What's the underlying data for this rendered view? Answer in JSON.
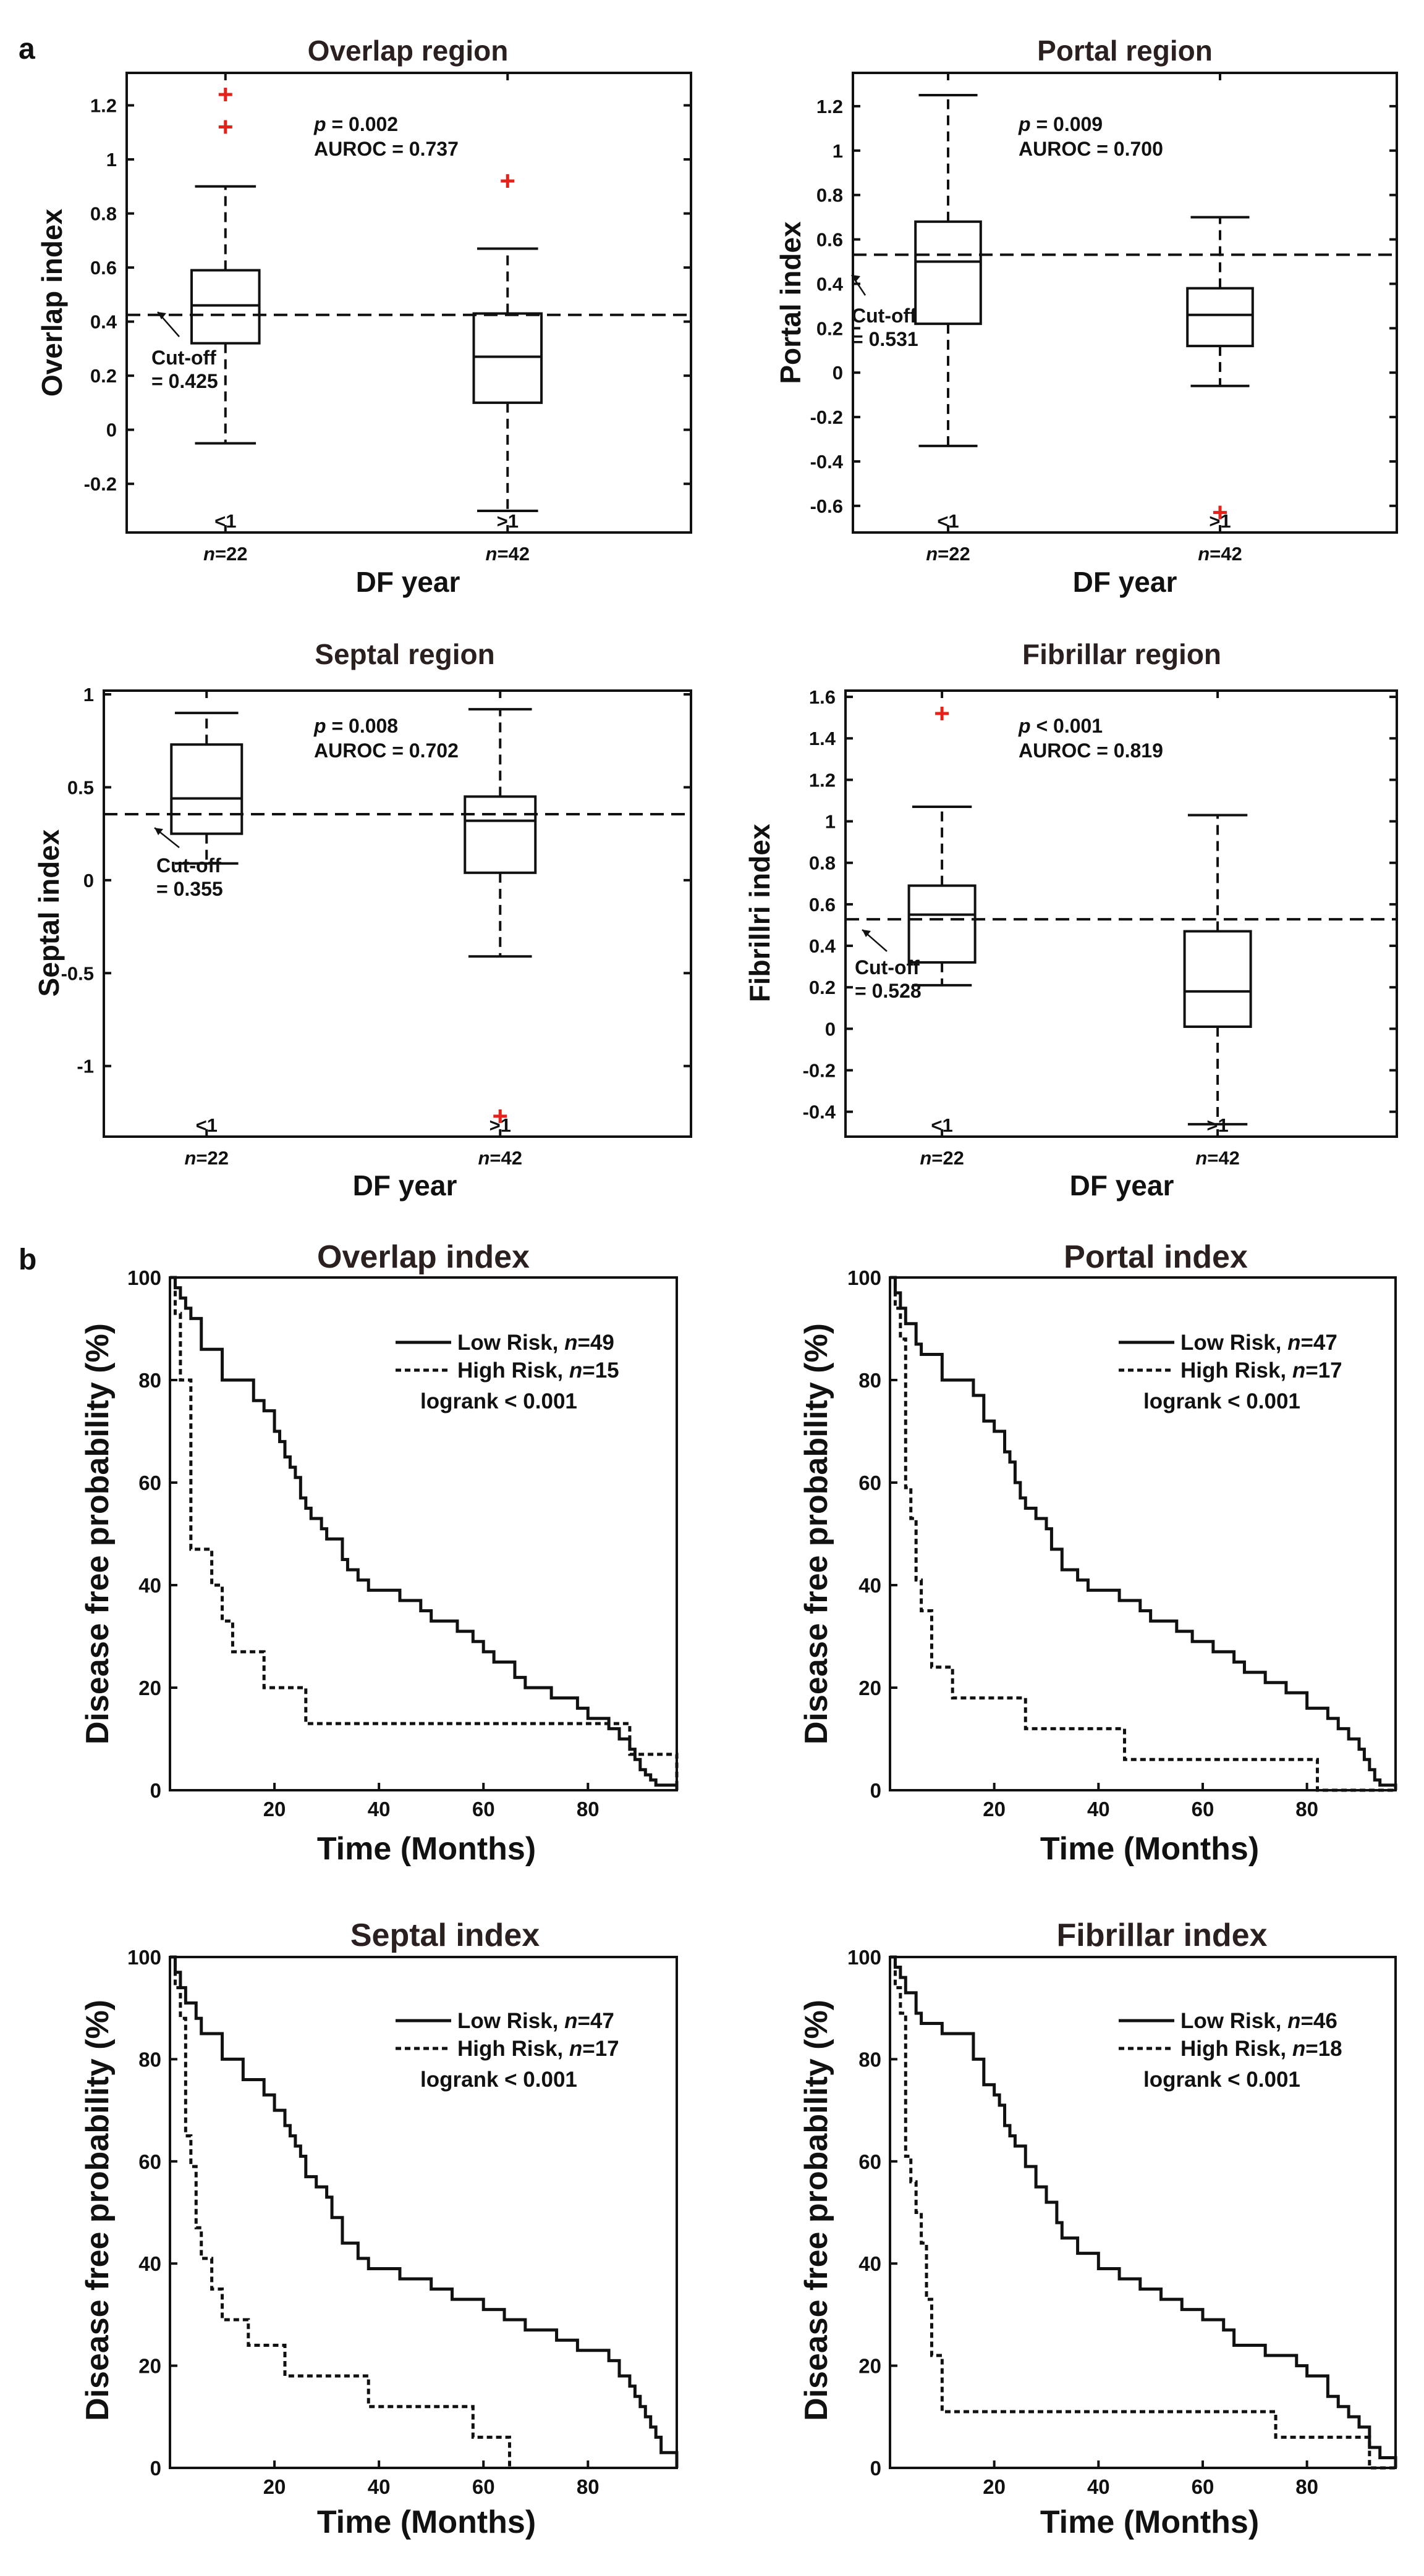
{
  "panel_labels": {
    "a": "a",
    "b": "b"
  },
  "legend_labels": {
    "low_prefix": "Low Risk, ",
    "high_prefix": "High Risk, ",
    "n_label": "n",
    "eq": "="
  },
  "chart_data": [
    {
      "type": "box",
      "title": "Overlap region",
      "ylabel": "Overlap index",
      "xlabel": "DF year",
      "ylim": [
        -0.38,
        1.32
      ],
      "yticks": [
        -0.2,
        0,
        0.2,
        0.4,
        0.6,
        0.8,
        1,
        1.2
      ],
      "ytick_labels": [
        "-0.2",
        "0",
        "0.2",
        "0.4",
        "0.6",
        "0.8",
        "1",
        "1.2"
      ],
      "categories": [
        "<1",
        ">1"
      ],
      "n_labels": [
        "n=22",
        "n=42"
      ],
      "boxes": [
        {
          "whisker_low": -0.05,
          "q1": 0.32,
          "median": 0.46,
          "q3": 0.59,
          "whisker_high": 0.9,
          "outliers": [
            1.24,
            1.12
          ]
        },
        {
          "whisker_low": -0.3,
          "q1": 0.1,
          "median": 0.27,
          "q3": 0.43,
          "whisker_high": 0.67,
          "outliers": [
            0.92
          ]
        }
      ],
      "cutoff": 0.425,
      "cutoff_label": [
        "Cut-off",
        "= 0.425"
      ],
      "stats": [
        "p = 0.002",
        "AUROC = 0.737"
      ]
    },
    {
      "type": "box",
      "title": "Portal region",
      "ylabel": "Portal index",
      "xlabel": "DF year",
      "ylim": [
        -0.72,
        1.35
      ],
      "yticks": [
        -0.6,
        -0.4,
        -0.2,
        0,
        0.2,
        0.4,
        0.6,
        0.8,
        1,
        1.2
      ],
      "ytick_labels": [
        "-0.6",
        "-0.4",
        "-0.2",
        "0",
        "0.2",
        "0.4",
        "0.6",
        "0.8",
        "1",
        "1.2"
      ],
      "categories": [
        "<1",
        ">1"
      ],
      "n_labels": [
        "n=22",
        "n=42"
      ],
      "boxes": [
        {
          "whisker_low": -0.33,
          "q1": 0.22,
          "median": 0.5,
          "q3": 0.68,
          "whisker_high": 1.25,
          "outliers": []
        },
        {
          "whisker_low": -0.06,
          "q1": 0.12,
          "median": 0.26,
          "q3": 0.38,
          "whisker_high": 0.7,
          "outliers": [
            -0.63
          ]
        }
      ],
      "cutoff": 0.531,
      "cutoff_label": [
        "Cut-off",
        "= 0.531"
      ],
      "stats": [
        "p = 0.009",
        "AUROC = 0.700"
      ]
    },
    {
      "type": "box",
      "title": "Septal region",
      "ylabel": "Septal index",
      "xlabel": "DF year",
      "ylim": [
        -1.38,
        1.02
      ],
      "yticks": [
        -1,
        -0.5,
        0,
        0.5,
        1
      ],
      "ytick_labels": [
        "-1",
        "-0.5",
        "0",
        "0.5",
        "1"
      ],
      "categories": [
        "<1",
        ">1"
      ],
      "n_labels": [
        "n=22",
        "n=42"
      ],
      "boxes": [
        {
          "whisker_low": 0.09,
          "q1": 0.25,
          "median": 0.44,
          "q3": 0.73,
          "whisker_high": 0.9,
          "outliers": []
        },
        {
          "whisker_low": -0.41,
          "q1": 0.04,
          "median": 0.32,
          "q3": 0.45,
          "whisker_high": 0.92,
          "outliers": [
            -1.27
          ]
        }
      ],
      "cutoff": 0.355,
      "cutoff_label": [
        "Cut-off",
        "= 0.355"
      ],
      "stats": [
        "p = 0.008",
        "AUROC = 0.702"
      ]
    },
    {
      "type": "box",
      "title": "Fibrillar region",
      "ylabel": "Fibrillri index",
      "xlabel": "DF year",
      "ylim": [
        -0.52,
        1.63
      ],
      "yticks": [
        -0.4,
        -0.2,
        0,
        0.2,
        0.4,
        0.6,
        0.8,
        1,
        1.2,
        1.4,
        1.6
      ],
      "ytick_labels": [
        "-0.4",
        "-0.2",
        "0",
        "0.2",
        "0.4",
        "0.6",
        "0.8",
        "1",
        "1.2",
        "1.4",
        "1.6"
      ],
      "categories": [
        "<1",
        ">1"
      ],
      "n_labels": [
        "n=22",
        "n=42"
      ],
      "boxes": [
        {
          "whisker_low": 0.21,
          "q1": 0.32,
          "median": 0.55,
          "q3": 0.69,
          "whisker_high": 1.07,
          "outliers": [
            1.52
          ]
        },
        {
          "whisker_low": -0.46,
          "q1": 0.01,
          "median": 0.18,
          "q3": 0.47,
          "whisker_high": 1.03,
          "outliers": []
        }
      ],
      "cutoff": 0.528,
      "cutoff_label": [
        "Cut-off",
        "= 0.528"
      ],
      "stats": [
        "p < 0.001",
        "AUROC = 0.819"
      ]
    },
    {
      "type": "line",
      "title": "Overlap index",
      "ylabel": "Disease free probability (%)",
      "xlabel": "Time (Months)",
      "xlim": [
        0,
        97
      ],
      "ylim": [
        0,
        100
      ],
      "xticks": [
        20,
        40,
        60,
        80
      ],
      "yticks": [
        0,
        20,
        40,
        60,
        80,
        100
      ],
      "logrank": "logrank < 0.001",
      "series": [
        {
          "name": "Low Risk",
          "n": 49,
          "style": "solid",
          "x": [
            0,
            1,
            2,
            3,
            4,
            6,
            10,
            16,
            18,
            20,
            21,
            22,
            23,
            24,
            25,
            26,
            27,
            29,
            30,
            33,
            34,
            36,
            38,
            44,
            48,
            50,
            55,
            58,
            60,
            62,
            66,
            68,
            73,
            78,
            80,
            84,
            86,
            88,
            89,
            90,
            91,
            92,
            93,
            94,
            97
          ],
          "y": [
            100,
            98,
            96,
            94,
            92,
            86,
            80,
            76,
            74,
            70,
            68,
            65,
            63,
            61,
            57,
            55,
            53,
            51,
            49,
            45,
            43,
            41,
            39,
            37,
            35,
            33,
            31,
            29,
            27,
            25,
            22,
            20,
            18,
            16,
            14,
            12,
            10,
            8,
            6,
            4,
            3,
            2,
            1,
            1,
            0
          ]
        },
        {
          "name": "High Risk",
          "n": 15,
          "style": "dashed",
          "x": [
            0,
            1,
            2,
            4,
            8,
            10,
            12,
            18,
            26,
            88,
            97
          ],
          "y": [
            100,
            93,
            80,
            47,
            40,
            33,
            27,
            20,
            13,
            7,
            0
          ]
        }
      ]
    },
    {
      "type": "line",
      "title": "Portal index",
      "ylabel": "Disease free probability (%)",
      "xlabel": "Time (Months)",
      "xlim": [
        0,
        97
      ],
      "ylim": [
        0,
        100
      ],
      "xticks": [
        20,
        40,
        60,
        80
      ],
      "yticks": [
        0,
        20,
        40,
        60,
        80,
        100
      ],
      "logrank": "logrank < 0.001",
      "series": [
        {
          "name": "Low Risk",
          "n": 47,
          "style": "solid",
          "x": [
            0,
            1,
            2,
            3,
            5,
            6,
            10,
            16,
            18,
            20,
            22,
            23,
            24,
            25,
            26,
            28,
            30,
            31,
            33,
            36,
            38,
            44,
            48,
            50,
            55,
            58,
            62,
            66,
            68,
            72,
            76,
            80,
            84,
            86,
            88,
            90,
            91,
            92,
            93,
            94,
            97
          ],
          "y": [
            100,
            97,
            94,
            91,
            87,
            85,
            80,
            77,
            72,
            70,
            66,
            64,
            60,
            57,
            55,
            53,
            51,
            47,
            43,
            41,
            39,
            37,
            35,
            33,
            31,
            29,
            27,
            25,
            23,
            21,
            19,
            16,
            14,
            12,
            10,
            8,
            6,
            4,
            2,
            1,
            0
          ]
        },
        {
          "name": "High Risk",
          "n": 17,
          "style": "dashed",
          "x": [
            0,
            1,
            2,
            3,
            4,
            5,
            6,
            8,
            12,
            26,
            45,
            82,
            97
          ],
          "y": [
            100,
            94,
            88,
            59,
            53,
            41,
            35,
            24,
            18,
            12,
            6,
            0,
            0
          ]
        }
      ]
    },
    {
      "type": "line",
      "title": "Septal index",
      "ylabel": "Disease free probability (%)",
      "xlabel": "Time (Months)",
      "xlim": [
        0,
        97
      ],
      "ylim": [
        0,
        100
      ],
      "xticks": [
        20,
        40,
        60,
        80
      ],
      "yticks": [
        0,
        20,
        40,
        60,
        80,
        100
      ],
      "logrank": "logrank < 0.001",
      "series": [
        {
          "name": "Low Risk",
          "n": 47,
          "style": "solid",
          "x": [
            0,
            1,
            2,
            3,
            5,
            6,
            10,
            14,
            18,
            20,
            22,
            23,
            24,
            25,
            26,
            28,
            30,
            31,
            33,
            36,
            38,
            44,
            50,
            54,
            60,
            64,
            68,
            74,
            78,
            84,
            86,
            88,
            89,
            90,
            91,
            92,
            93,
            94,
            97
          ],
          "y": [
            100,
            97,
            94,
            91,
            88,
            85,
            80,
            76,
            73,
            70,
            67,
            65,
            63,
            61,
            57,
            55,
            53,
            49,
            44,
            41,
            39,
            37,
            35,
            33,
            31,
            29,
            27,
            25,
            23,
            21,
            18,
            16,
            14,
            12,
            10,
            8,
            6,
            3,
            0
          ]
        },
        {
          "name": "High Risk",
          "n": 17,
          "style": "dashed",
          "x": [
            0,
            1,
            2,
            3,
            4,
            5,
            6,
            8,
            10,
            15,
            22,
            38,
            58,
            65
          ],
          "y": [
            100,
            94,
            88,
            65,
            59,
            47,
            41,
            35,
            29,
            24,
            18,
            12,
            6,
            0
          ]
        }
      ]
    },
    {
      "type": "line",
      "title": "Fibrillar index",
      "ylabel": "Disease free probability (%)",
      "xlabel": "Time (Months)",
      "xlim": [
        0,
        97
      ],
      "ylim": [
        0,
        100
      ],
      "xticks": [
        20,
        40,
        60,
        80
      ],
      "yticks": [
        0,
        20,
        40,
        60,
        80,
        100
      ],
      "logrank": "logrank < 0.001",
      "series": [
        {
          "name": "Low Risk",
          "n": 46,
          "style": "solid",
          "x": [
            0,
            1,
            2,
            3,
            5,
            6,
            10,
            16,
            18,
            20,
            21,
            22,
            23,
            24,
            26,
            28,
            30,
            32,
            33,
            36,
            40,
            44,
            48,
            52,
            56,
            60,
            64,
            66,
            72,
            78,
            80,
            84,
            86,
            88,
            90,
            92,
            94,
            97
          ],
          "y": [
            100,
            98,
            96,
            93,
            89,
            87,
            85,
            80,
            75,
            73,
            71,
            67,
            65,
            63,
            59,
            55,
            52,
            48,
            45,
            42,
            39,
            37,
            35,
            33,
            31,
            29,
            27,
            24,
            22,
            20,
            18,
            14,
            12,
            10,
            8,
            4,
            2,
            0
          ]
        },
        {
          "name": "High Risk",
          "n": 18,
          "style": "dashed",
          "x": [
            0,
            1,
            2,
            3,
            4,
            5,
            6,
            7,
            8,
            10,
            74,
            82,
            92,
            97
          ],
          "y": [
            100,
            94,
            89,
            61,
            56,
            50,
            44,
            33,
            22,
            11,
            6,
            6,
            0,
            0
          ]
        }
      ]
    }
  ]
}
